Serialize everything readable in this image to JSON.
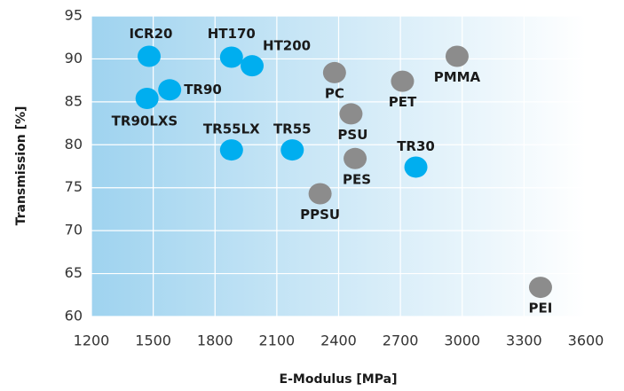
{
  "chart_data": {
    "type": "scatter",
    "xlabel": "E-Modulus [MPa]",
    "ylabel": "Transmission [%]",
    "xlim": [
      1200,
      3600
    ],
    "xticks": [
      1200,
      1500,
      1800,
      2100,
      2400,
      2700,
      3000,
      3300,
      3600
    ],
    "ylim": [
      60,
      95
    ],
    "yticks": [
      60,
      65,
      70,
      75,
      80,
      85,
      90,
      95
    ],
    "grid": true,
    "series": [
      {
        "color": "#00aeef",
        "labels": [
          "ICR20",
          "TR90LXS",
          "TR90",
          "HT170",
          "HT200",
          "TR55LX",
          "TR55",
          "TR30"
        ],
        "x": [
          1480,
          1470,
          1580,
          1880,
          1980,
          1880,
          2175,
          2775
        ],
        "values": [
          90.3,
          85.4,
          86.4,
          90.2,
          89.2,
          79.4,
          79.4,
          77.4
        ]
      },
      {
        "color": "#8c8c8c",
        "labels": [
          "PC",
          "PSU",
          "PES",
          "PPSU",
          "PET",
          "PMMA",
          "PEI"
        ],
        "x": [
          2380,
          2460,
          2480,
          2310,
          2710,
          2975,
          3380
        ],
        "values": [
          88.4,
          83.6,
          78.4,
          74.3,
          87.4,
          90.3,
          63.4
        ]
      }
    ]
  }
}
